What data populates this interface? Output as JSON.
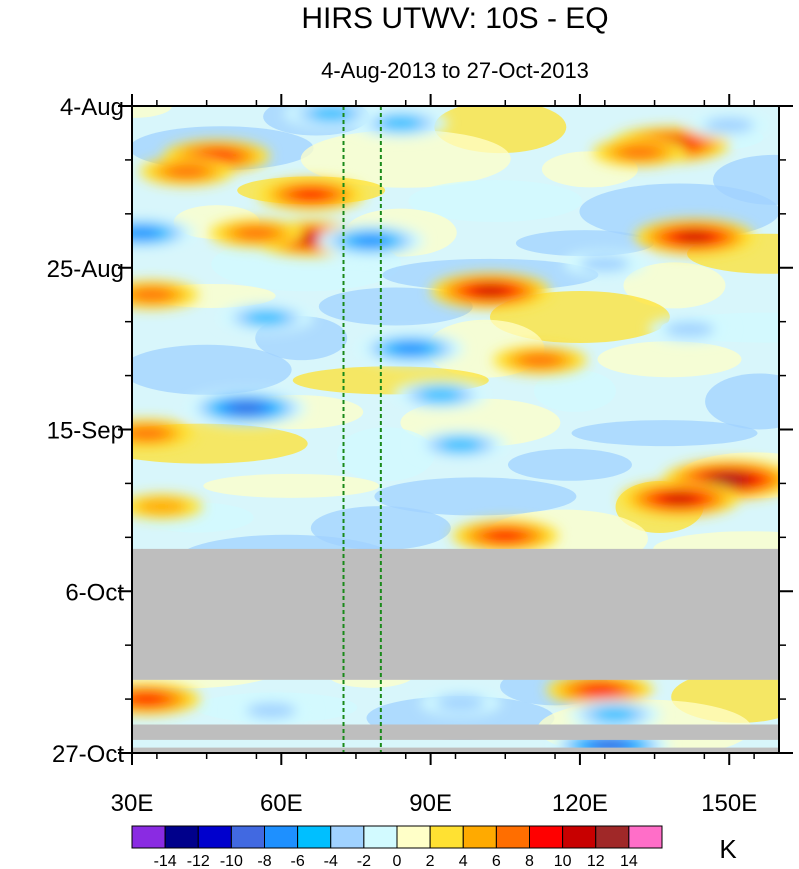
{
  "chart_data": {
    "type": "heatmap",
    "title": "HIRS UTWV: 10S - EQ",
    "subtitle": "4-Aug-2013 to 27-Oct-2013",
    "x_axis": {
      "range": [
        30,
        160
      ],
      "ticks": [
        {
          "value": 30,
          "label": "30E"
        },
        {
          "value": 60,
          "label": "60E"
        },
        {
          "value": 90,
          "label": "90E"
        },
        {
          "value": 120,
          "label": "120E"
        },
        {
          "value": 150,
          "label": "150E"
        }
      ]
    },
    "y_axis": {
      "range_days": [
        0,
        84
      ],
      "ticks": [
        {
          "day": 0,
          "label": "4-Aug"
        },
        {
          "day": 21,
          "label": "25-Aug"
        },
        {
          "day": 42,
          "label": "15-Sep"
        },
        {
          "day": 63,
          "label": "6-Oct"
        },
        {
          "day": 84,
          "label": "27-Oct"
        }
      ]
    },
    "reference_lines_lon": [
      72.5,
      80
    ],
    "missing_data_days": [
      [
        57.5,
        74.5
      ],
      [
        80.3,
        82.3
      ],
      [
        83.3,
        84
      ]
    ],
    "colorbar": {
      "unit": "K",
      "labels": [
        "-14",
        "-12",
        "-10",
        "-8",
        "-6",
        "-4",
        "-2",
        "0",
        "2",
        "4",
        "6",
        "8",
        "10",
        "12",
        "14"
      ],
      "colors": [
        "#8a2be2",
        "#00008b",
        "#0000cd",
        "#4169e1",
        "#1e90ff",
        "#00bfff",
        "#a0d2ff",
        "#d2faff",
        "#ffffc8",
        "#ffe132",
        "#ffaa00",
        "#ff6e00",
        "#ff0000",
        "#c80000",
        "#a02828",
        "#ff6ec8"
      ]
    },
    "anomaly_features": [
      {
        "lon": 47,
        "day": 6.5,
        "value": 8
      },
      {
        "lon": 41,
        "day": 8.5,
        "value": 6
      },
      {
        "lon": 66,
        "day": 11.5,
        "value": 8
      },
      {
        "lon": 66,
        "day": 17.2,
        "value": 10
      },
      {
        "lon": 55,
        "day": 16.5,
        "value": 6
      },
      {
        "lon": 138,
        "day": 5.0,
        "value": 10
      },
      {
        "lon": 132,
        "day": 6.0,
        "value": 6
      },
      {
        "lon": 143,
        "day": 17.0,
        "value": 10
      },
      {
        "lon": 34,
        "day": 24.5,
        "value": 6
      },
      {
        "lon": 102,
        "day": 24.0,
        "value": 10
      },
      {
        "lon": 112,
        "day": 33.0,
        "value": 6
      },
      {
        "lon": 33,
        "day": 42.5,
        "value": 6
      },
      {
        "lon": 150,
        "day": 48.5,
        "value": 12
      },
      {
        "lon": 140,
        "day": 51.0,
        "value": 10
      },
      {
        "lon": 105,
        "day": 55.8,
        "value": 8
      },
      {
        "lon": 36,
        "day": 52.0,
        "value": 4
      },
      {
        "lon": 124,
        "day": 75.8,
        "value": 8
      },
      {
        "lon": 33,
        "day": 77.0,
        "value": 8
      },
      {
        "lon": 32,
        "day": 16.5,
        "value": -8
      },
      {
        "lon": 78,
        "day": 17.5,
        "value": -8
      },
      {
        "lon": 53,
        "day": 39.2,
        "value": -10
      },
      {
        "lon": 86,
        "day": 31.5,
        "value": -8
      },
      {
        "lon": 57,
        "day": 27.5,
        "value": -6
      },
      {
        "lon": 92,
        "day": 37.5,
        "value": -6
      },
      {
        "lon": 96,
        "day": 44.0,
        "value": -6
      },
      {
        "lon": 142,
        "day": 29.0,
        "value": -4
      },
      {
        "lon": 125,
        "day": 20.5,
        "value": -4
      },
      {
        "lon": 84,
        "day": 2.2,
        "value": -6
      },
      {
        "lon": 127,
        "day": 79.0,
        "value": -6
      },
      {
        "lon": 96,
        "day": 77.5,
        "value": -4
      },
      {
        "lon": 58,
        "day": 78.5,
        "value": -4
      },
      {
        "lon": 126,
        "day": 83.0,
        "value": -10
      },
      {
        "lon": 150,
        "day": 2.5,
        "value": -4
      },
      {
        "lon": 70,
        "day": 1.0,
        "value": -6
      }
    ]
  }
}
